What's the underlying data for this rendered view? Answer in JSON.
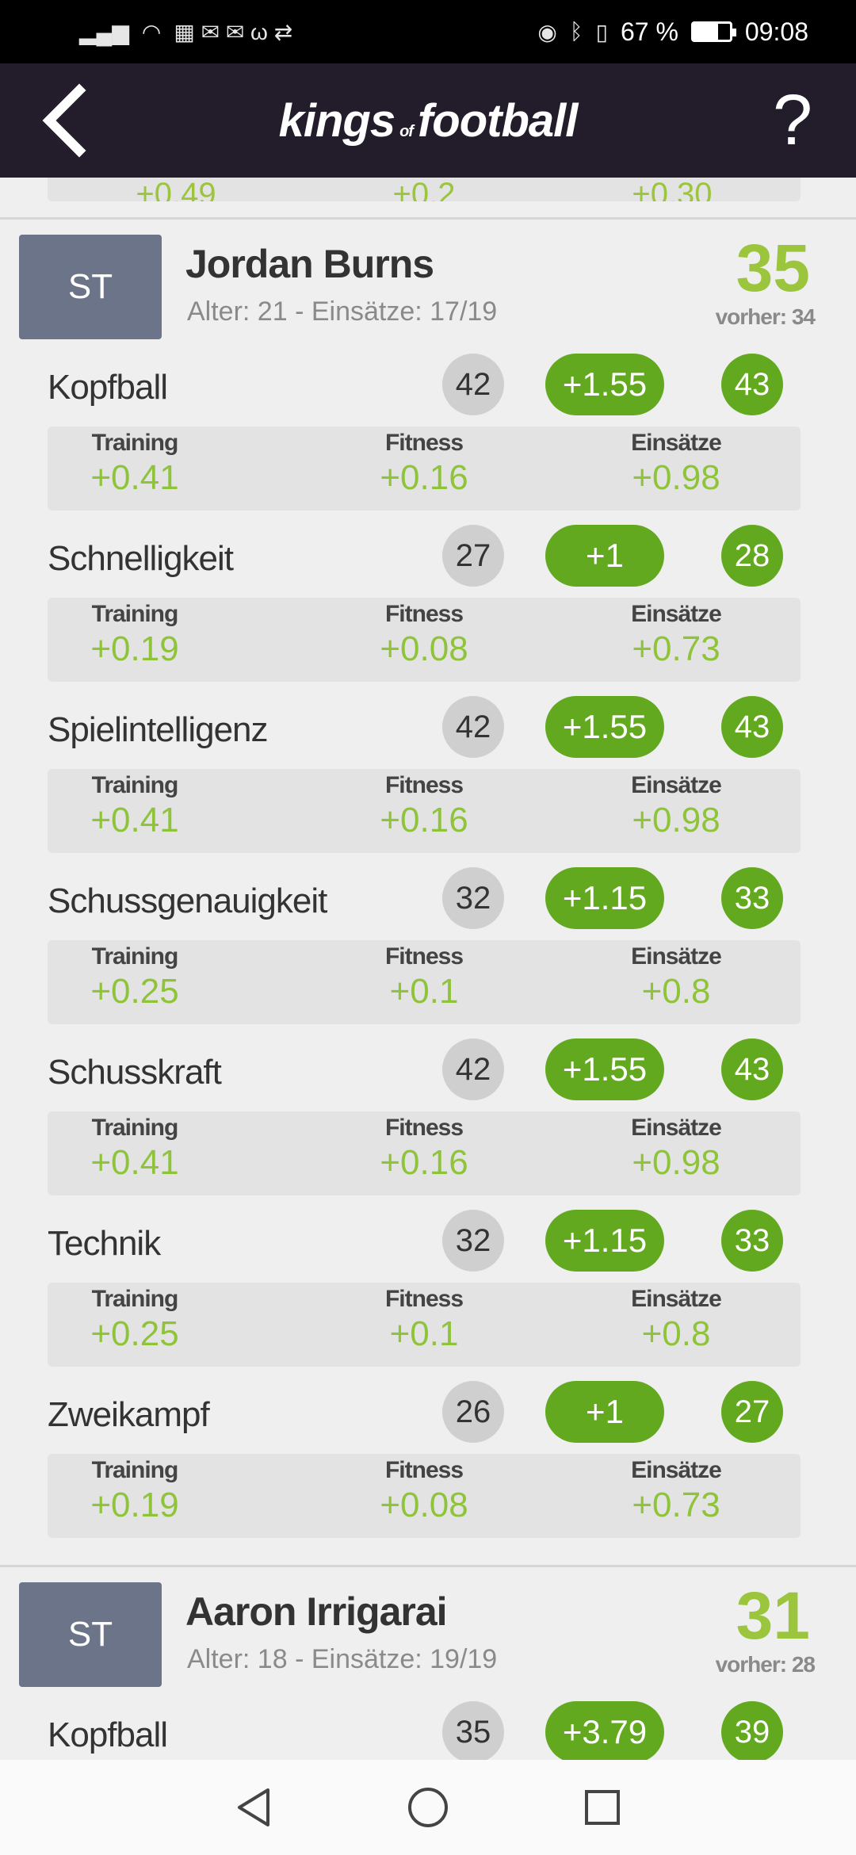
{
  "status": {
    "battery_percent": "67 %",
    "time": "09:08",
    "battery_level": 0.67
  },
  "header": {
    "brand_left": "kings",
    "brand_of": "of",
    "brand_right": "football",
    "help_label": "?"
  },
  "previous_peek": {
    "values": [
      "+0.49",
      "+0.2",
      "+0.30"
    ]
  },
  "columns": {
    "training": "Training",
    "fitness": "Fitness",
    "einsaetze": "Einsätze"
  },
  "players": [
    {
      "position": "ST",
      "name": "Jordan Burns",
      "meta": "Alter: 21 - Einsätze: 17/19",
      "rating": "35",
      "previous": "vorher: 34",
      "skills": [
        {
          "name": "Kopfball",
          "base": "42",
          "delta": "+1.55",
          "new": "43",
          "training": "+0.41",
          "fitness": "+0.16",
          "einsaetze": "+0.98"
        },
        {
          "name": "Schnelligkeit",
          "base": "27",
          "delta": "+1",
          "new": "28",
          "training": "+0.19",
          "fitness": "+0.08",
          "einsaetze": "+0.73"
        },
        {
          "name": "Spielintelligenz",
          "base": "42",
          "delta": "+1.55",
          "new": "43",
          "training": "+0.41",
          "fitness": "+0.16",
          "einsaetze": "+0.98"
        },
        {
          "name": "Schussgenauigkeit",
          "base": "32",
          "delta": "+1.15",
          "new": "33",
          "training": "+0.25",
          "fitness": "+0.1",
          "einsaetze": "+0.8"
        },
        {
          "name": "Schusskraft",
          "base": "42",
          "delta": "+1.55",
          "new": "43",
          "training": "+0.41",
          "fitness": "+0.16",
          "einsaetze": "+0.98"
        },
        {
          "name": "Technik",
          "base": "32",
          "delta": "+1.15",
          "new": "33",
          "training": "+0.25",
          "fitness": "+0.1",
          "einsaetze": "+0.8"
        },
        {
          "name": "Zweikampf",
          "base": "26",
          "delta": "+1",
          "new": "27",
          "training": "+0.19",
          "fitness": "+0.08",
          "einsaetze": "+0.73"
        }
      ]
    },
    {
      "position": "ST",
      "name": "Aaron Irrigarai",
      "meta": "Alter: 18 - Einsätze: 19/19",
      "rating": "31",
      "previous": "vorher: 28",
      "skills": [
        {
          "name": "Kopfball",
          "base": "35",
          "delta": "+3.79",
          "new": "39"
        }
      ]
    }
  ]
}
